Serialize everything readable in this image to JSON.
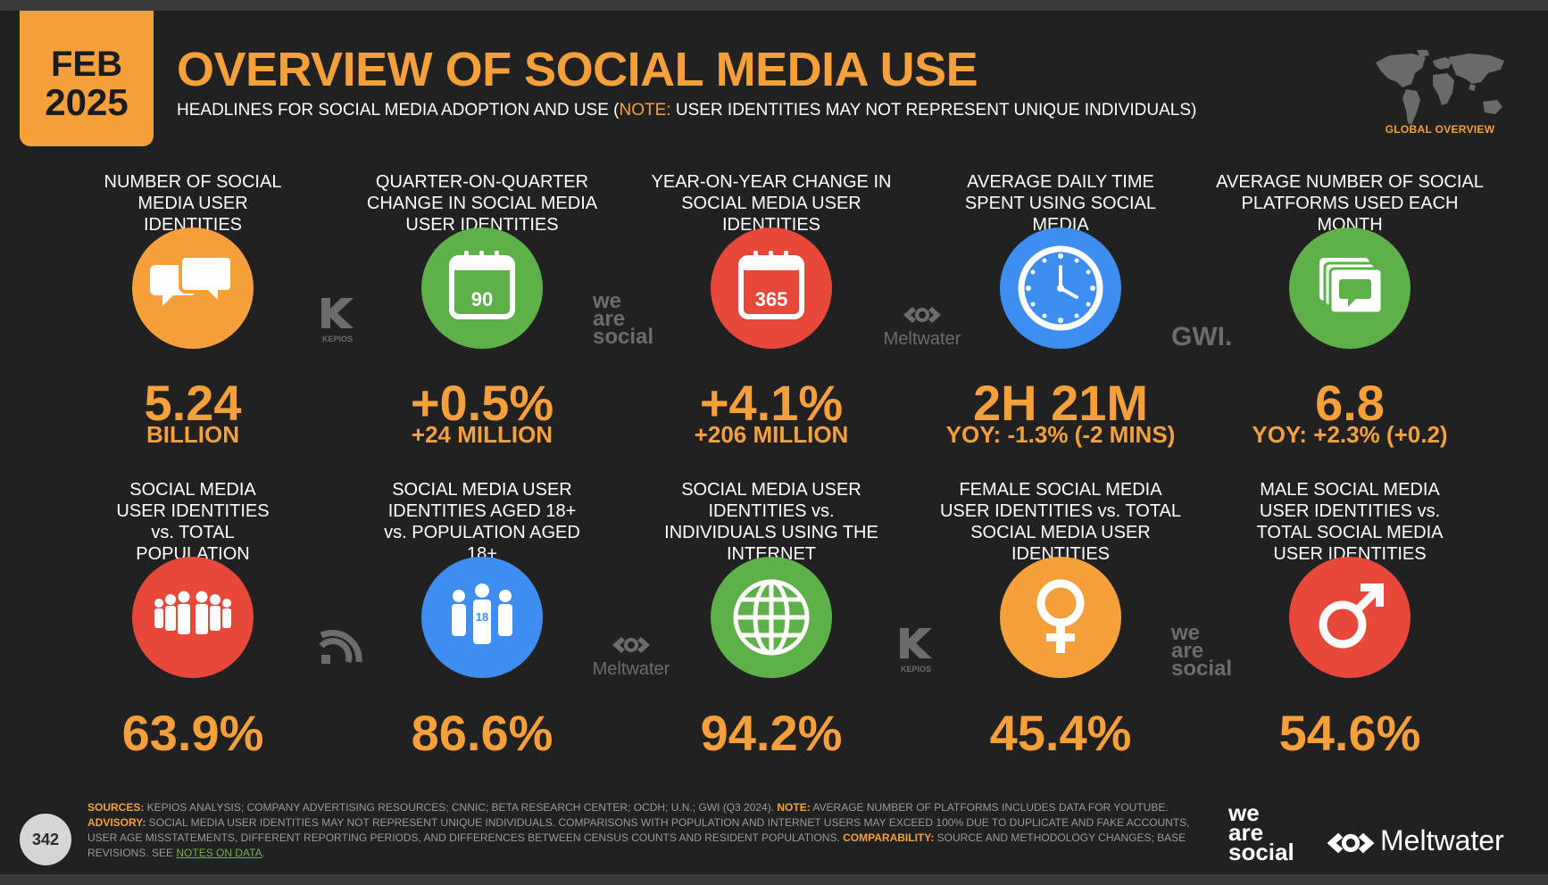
{
  "date_badge": {
    "month": "FEB",
    "year": "2025"
  },
  "title": "OVERVIEW OF SOCIAL MEDIA USE",
  "subtitle": {
    "before": "HEADLINES FOR SOCIAL MEDIA ADOPTION AND USE (",
    "note": "NOTE:",
    "after": " USER IDENTITIES MAY NOT REPRESENT UNIQUE INDIVIDUALS)"
  },
  "map_label": "GLOBAL OVERVIEW",
  "row1": [
    {
      "label": "NUMBER OF SOCIAL MEDIA USER IDENTITIES",
      "value": "5.24",
      "sub": "BILLION",
      "icon": "speech-bubbles-icon",
      "color": "#f5a03a"
    },
    {
      "label": "QUARTER-ON-QUARTER CHANGE IN SOCIAL MEDIA USER IDENTITIES",
      "value": "+0.5%",
      "sub": "+24 MILLION",
      "icon": "calendar-90-icon",
      "icon_text": "90",
      "color": "#5eb048"
    },
    {
      "label": "YEAR-ON-YEAR CHANGE IN SOCIAL MEDIA USER IDENTITIES",
      "value": "+4.1%",
      "sub": "+206 MILLION",
      "icon": "calendar-365-icon",
      "icon_text": "365",
      "color": "#e8483a"
    },
    {
      "label": "AVERAGE DAILY TIME SPENT USING SOCIAL MEDIA",
      "value": "2H 21M",
      "sub": "YOY: -1.3% (-2 MINS)",
      "icon": "clock-icon",
      "color": "#3d8ef0"
    },
    {
      "label": "AVERAGE NUMBER OF SOCIAL PLATFORMS USED EACH MONTH",
      "value": "6.8",
      "sub": "YOY: +2.3% (+0.2)",
      "icon": "stacked-platforms-icon",
      "color": "#5eb048"
    }
  ],
  "row2": [
    {
      "label": "SOCIAL MEDIA USER IDENTITIES vs. TOTAL POPULATION",
      "value": "63.9%",
      "icon": "population-icon",
      "color": "#e8483a"
    },
    {
      "label": "SOCIAL MEDIA USER IDENTITIES AGED 18+ vs. POPULATION AGED 18+",
      "value": "86.6%",
      "icon": "adults-18-icon",
      "icon_text": "18",
      "color": "#3d8ef0"
    },
    {
      "label": "SOCIAL MEDIA USER IDENTITIES vs. INDIVIDUALS USING THE INTERNET",
      "value": "94.2%",
      "icon": "globe-icon",
      "color": "#5eb048"
    },
    {
      "label": "FEMALE SOCIAL MEDIA USER IDENTITIES vs. TOTAL SOCIAL MEDIA USER IDENTITIES",
      "value": "45.4%",
      "icon": "female-symbol-icon",
      "color": "#f5a03a"
    },
    {
      "label": "MALE SOCIAL MEDIA USER IDENTITIES vs. TOTAL SOCIAL MEDIA USER IDENTITIES",
      "value": "54.6%",
      "icon": "male-symbol-icon",
      "color": "#e8483a"
    }
  ],
  "source_logos": {
    "kepios": "KEPIOS",
    "we_are_social": [
      "we",
      "are",
      "social"
    ],
    "meltwater": "Meltwater",
    "gwi": "GWI."
  },
  "footer": {
    "sources_key": "SOURCES:",
    "sources_text": " KEPIOS ANALYSIS; COMPANY ADVERTISING RESOURCES; CNNIC; BETA RESEARCH CENTER; OCDH; U.N.; GWI (Q3 2024). ",
    "note_key": "NOTE:",
    "note_text": " AVERAGE NUMBER OF PLATFORMS INCLUDES DATA FOR YOUTUBE.",
    "advisory_key": "ADVISORY:",
    "advisory_text": " SOCIAL MEDIA USER IDENTITIES MAY NOT REPRESENT UNIQUE INDIVIDUALS. COMPARISONS WITH POPULATION AND INTERNET USERS MAY EXCEED 100% DUE TO DUPLICATE AND FAKE ACCOUNTS, USER AGE MISSTATEMENTS, DIFFERENT REPORTING PERIODS, AND DIFFERENCES BETWEEN CENSUS COUNTS AND RESIDENT POPULATIONS. ",
    "comparability_key": "COMPARABILITY:",
    "comparability_text": " SOURCE AND METHODOLOGY CHANGES; BASE REVISIONS. SEE ",
    "link_text": "NOTES ON DATA",
    "end": "."
  },
  "page_number": "342",
  "brand": {
    "we_are_social": [
      "we",
      "are",
      "social"
    ],
    "meltwater": "Meltwater"
  }
}
